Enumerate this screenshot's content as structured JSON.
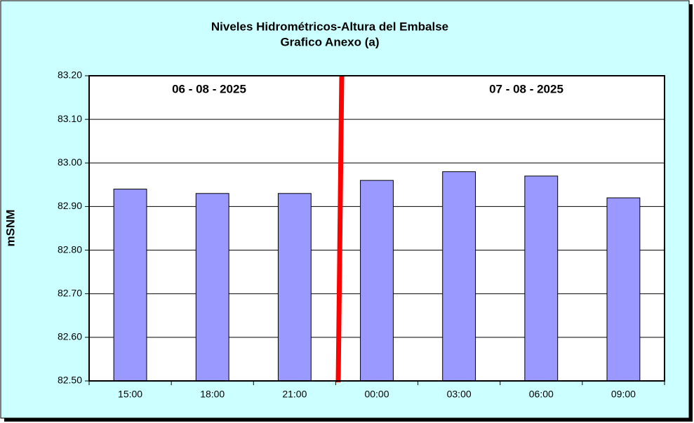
{
  "chart_data": {
    "type": "bar",
    "title": "Niveles Hidrométricos-Altura del Embalse",
    "subtitle": "Grafico Anexo (a)",
    "y_label": "mSNM",
    "annotations": [
      "06 - 08 - 2025",
      "07 - 08 - 2025"
    ],
    "categories": [
      "15:00",
      "18:00",
      "21:00",
      "00:00",
      "03:00",
      "06:00",
      "09:00"
    ],
    "values": [
      82.94,
      82.93,
      82.93,
      82.96,
      82.98,
      82.97,
      82.92
    ],
    "color": "#9999ff",
    "ylim": [
      82.5,
      83.2
    ],
    "yticks": [
      {
        "value": 82.5,
        "label": "82.50"
      },
      {
        "value": 82.6,
        "label": "82.60"
      },
      {
        "value": 82.7,
        "label": "82.70"
      },
      {
        "value": 82.8,
        "label": "82.80"
      },
      {
        "value": 82.9,
        "label": "82.90"
      },
      {
        "value": 83.0,
        "label": "83.00"
      },
      {
        "value": 83.1,
        "label": "83.10"
      },
      {
        "value": 83.2,
        "label": "83.20"
      }
    ],
    "grid": true
  }
}
